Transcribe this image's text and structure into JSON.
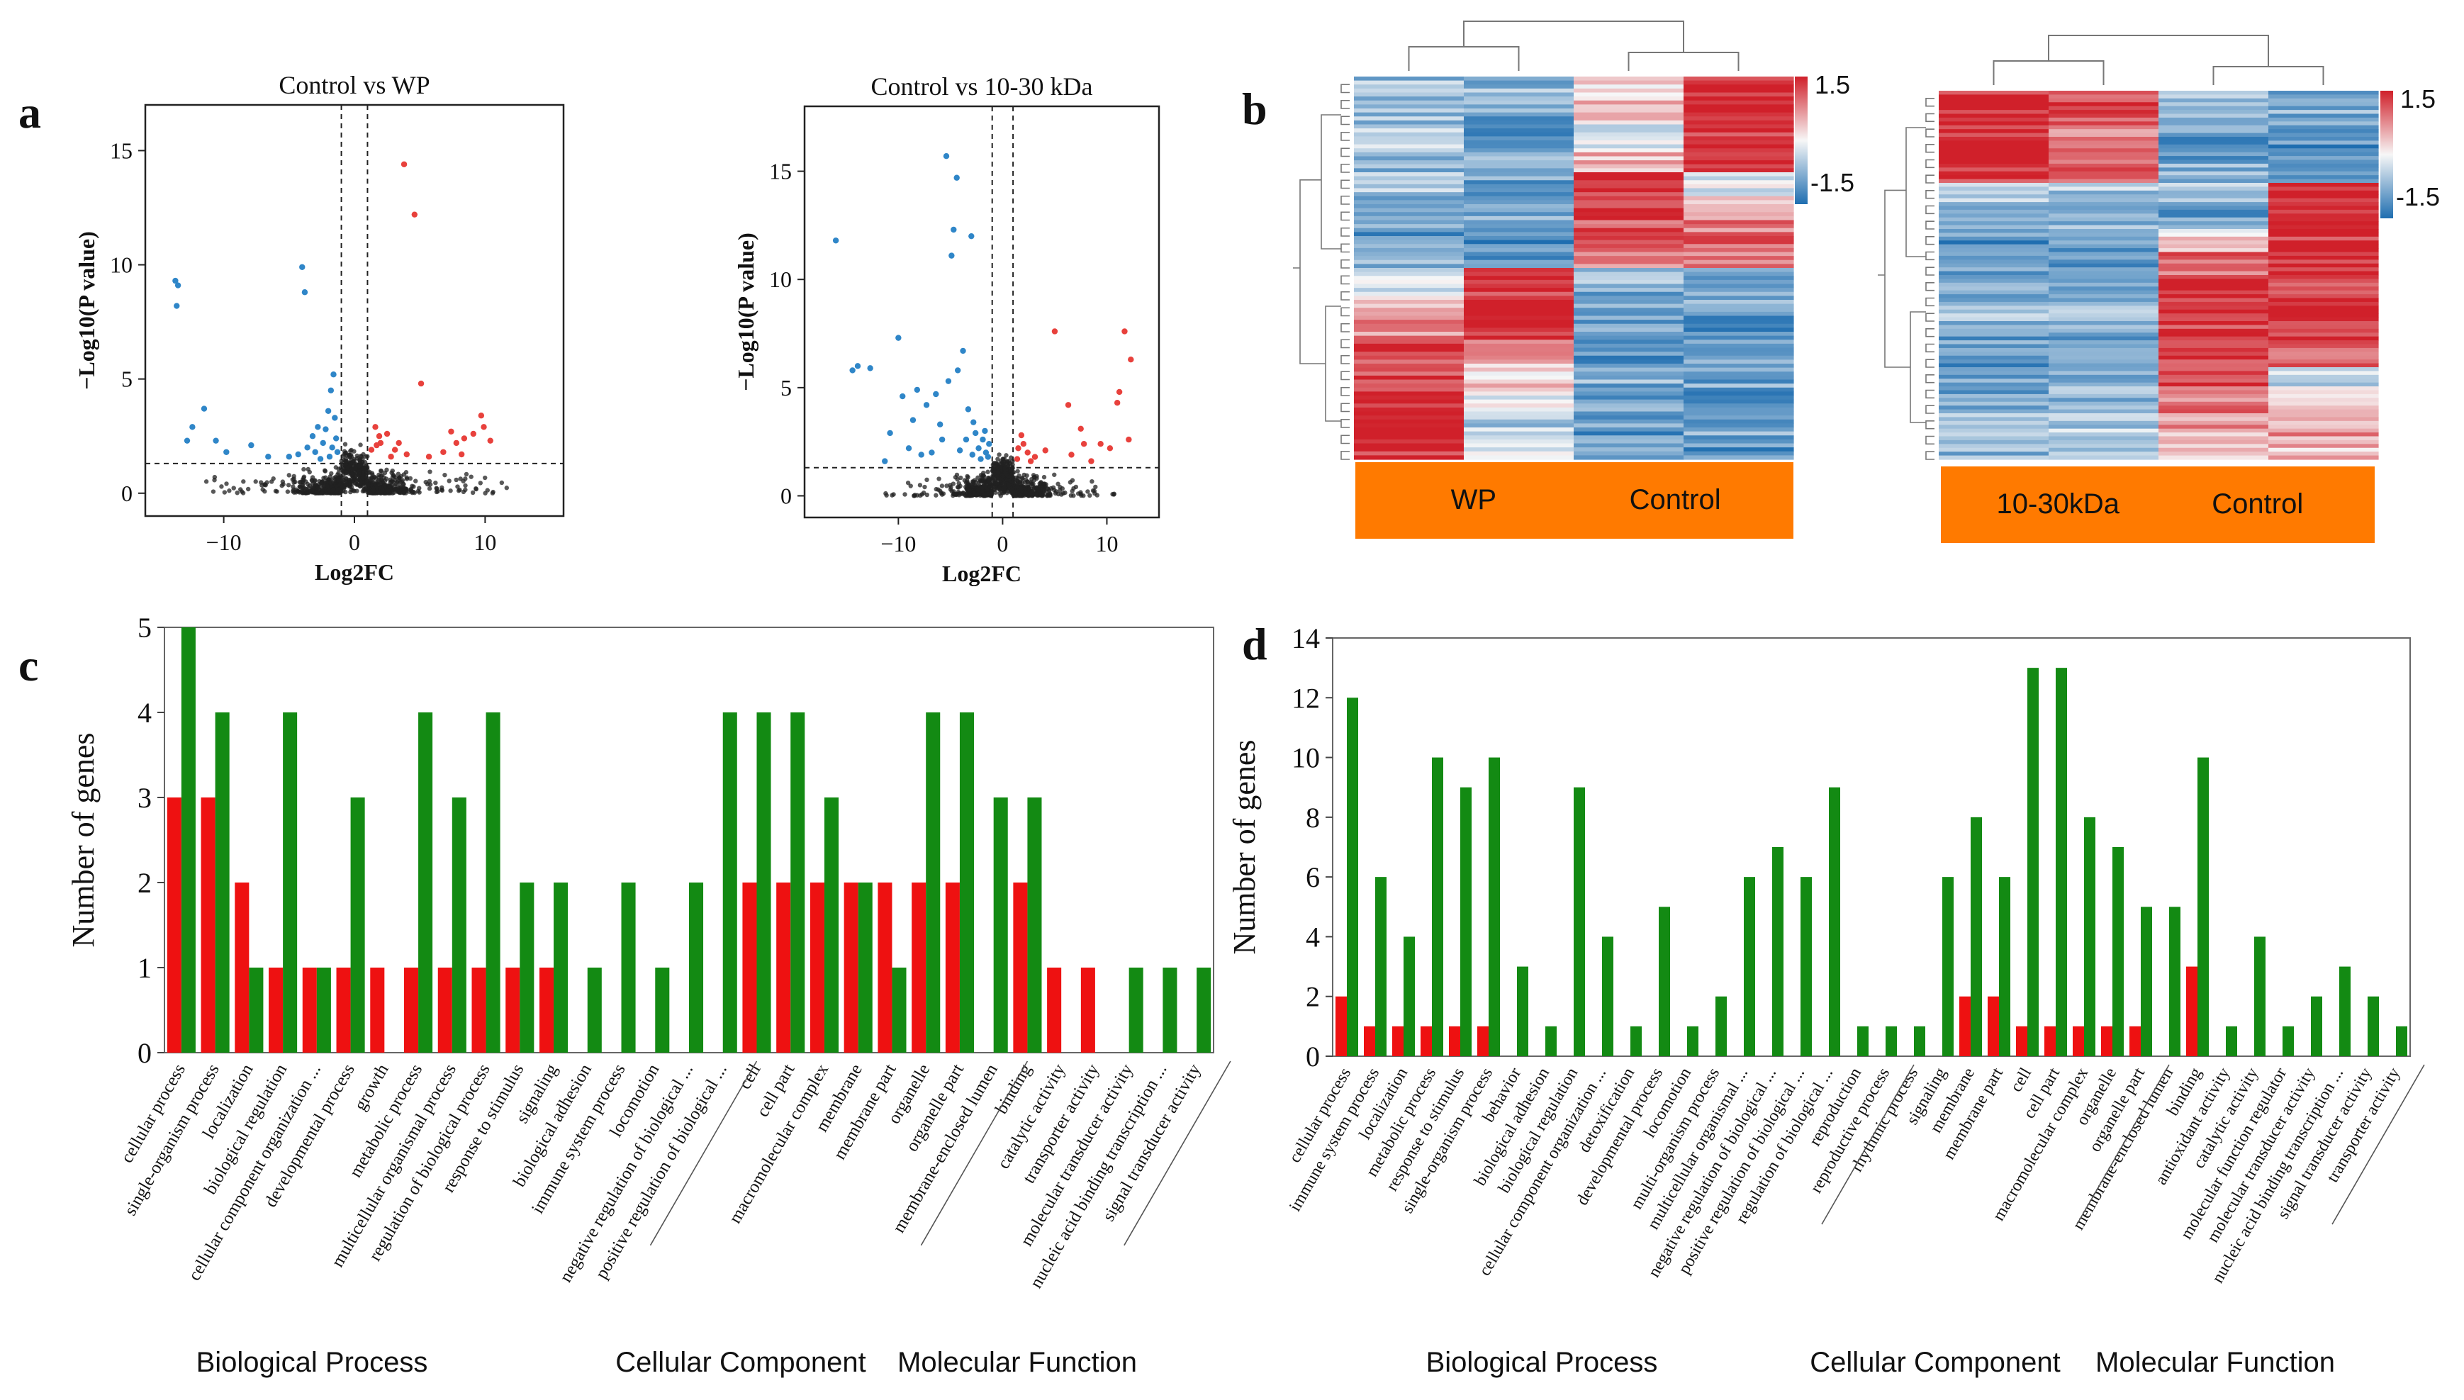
{
  "panel_labels": {
    "a": "a",
    "b": "b",
    "c": "c",
    "d": "d"
  },
  "colors": {
    "up": "#e8413c",
    "down": "#2f86c8",
    "ns": "#222222",
    "red_bar": "#ee1111",
    "green_bar": "#138a13",
    "orange": "#ff7a00",
    "heat_low": "#1f6eb0",
    "heat_mid": "#f7f7f7",
    "heat_high": "#d0202a"
  },
  "chart_data": [
    {
      "id": "volcano-1",
      "type": "scatter",
      "title": "Control vs WP",
      "xlabel": "Log2FC",
      "ylabel": "−Log10(P value)",
      "xlim": [
        -16,
        16
      ],
      "ylim": [
        -1,
        17
      ],
      "xticks": [
        -10,
        0,
        10
      ],
      "yticks": [
        0,
        5,
        10,
        15
      ],
      "thresholds": {
        "log2fc": [
          -1,
          1
        ],
        "neglog10p": 1.3
      },
      "series": [
        {
          "name": "down",
          "points": [
            [
              -13.7,
              9.3
            ],
            [
              -13.5,
              9.1
            ],
            [
              -13.6,
              8.2
            ],
            [
              -4.0,
              9.9
            ],
            [
              -3.8,
              8.8
            ],
            [
              -11.5,
              3.7
            ],
            [
              -12.4,
              2.9
            ],
            [
              -12.8,
              2.3
            ],
            [
              -10.6,
              2.3
            ],
            [
              -9.8,
              1.8
            ],
            [
              -7.9,
              2.1
            ],
            [
              -6.6,
              1.6
            ],
            [
              -5.0,
              1.6
            ],
            [
              -3.2,
              2.5
            ],
            [
              -3.0,
              1.8
            ],
            [
              -2.8,
              2.9
            ],
            [
              -2.4,
              2.2
            ],
            [
              -2.0,
              3.6
            ],
            [
              -1.8,
              4.5
            ],
            [
              -1.6,
              5.2
            ],
            [
              -1.5,
              3.3
            ],
            [
              -1.4,
              2.4
            ],
            [
              -1.3,
              1.8
            ],
            [
              -2.6,
              1.5
            ],
            [
              -1.9,
              1.6
            ],
            [
              -2.2,
              2.8
            ],
            [
              -1.7,
              2.0
            ],
            [
              -3.6,
              2.0
            ],
            [
              -4.3,
              1.7
            ]
          ]
        },
        {
          "name": "up",
          "points": [
            [
              3.8,
              14.4
            ],
            [
              4.6,
              12.2
            ],
            [
              5.1,
              4.8
            ],
            [
              1.6,
              2.9
            ],
            [
              2.0,
              2.2
            ],
            [
              2.5,
              2.6
            ],
            [
              3.1,
              1.9
            ],
            [
              3.4,
              2.2
            ],
            [
              4.0,
              1.7
            ],
            [
              1.3,
              1.9
            ],
            [
              1.7,
              2.1
            ],
            [
              2.8,
              1.6
            ],
            [
              1.9,
              2.5
            ],
            [
              7.4,
              2.7
            ],
            [
              7.8,
              2.2
            ],
            [
              8.4,
              2.4
            ],
            [
              9.1,
              2.6
            ],
            [
              9.7,
              3.4
            ],
            [
              9.9,
              2.9
            ],
            [
              10.4,
              2.3
            ],
            [
              8.2,
              1.7
            ],
            [
              6.8,
              1.8
            ],
            [
              5.7,
              1.6
            ]
          ]
        }
      ]
    },
    {
      "id": "volcano-2",
      "type": "scatter",
      "title": "Control vs 10-30 kDa",
      "xlabel": "Log2FC",
      "ylabel": "−Log10(P value)",
      "xlim": [
        -19,
        15
      ],
      "ylim": [
        -1,
        18
      ],
      "xticks": [
        -10,
        0,
        10
      ],
      "yticks": [
        0,
        5,
        10,
        15
      ],
      "thresholds": {
        "log2fc": [
          -1,
          1
        ],
        "neglog10p": 1.3
      },
      "series": [
        {
          "name": "down",
          "points": [
            [
              -5.4,
              15.7
            ],
            [
              -4.4,
              14.7
            ],
            [
              -4.7,
              12.3
            ],
            [
              -4.9,
              11.1
            ],
            [
              -3.0,
              12.0
            ],
            [
              -16.0,
              11.8
            ],
            [
              -12.7,
              5.9
            ],
            [
              -13.9,
              6.0
            ],
            [
              -14.4,
              5.8
            ],
            [
              -10.0,
              7.3
            ],
            [
              -9.6,
              4.6
            ],
            [
              -8.2,
              4.9
            ],
            [
              -7.3,
              4.2
            ],
            [
              -6.4,
              4.7
            ],
            [
              -5.2,
              5.3
            ],
            [
              -4.3,
              5.8
            ],
            [
              -3.8,
              6.7
            ],
            [
              -3.3,
              4.0
            ],
            [
              -2.8,
              3.4
            ],
            [
              -2.6,
              2.9
            ],
            [
              -2.3,
              2.2
            ],
            [
              -1.9,
              2.6
            ],
            [
              -1.7,
              3.0
            ],
            [
              -1.6,
              2.0
            ],
            [
              -1.4,
              1.8
            ],
            [
              -1.3,
              2.4
            ],
            [
              -2.1,
              1.7
            ],
            [
              -3.5,
              2.6
            ],
            [
              -4.1,
              2.1
            ],
            [
              -5.8,
              2.6
            ],
            [
              -6.8,
              2.0
            ],
            [
              -7.8,
              1.9
            ],
            [
              -9.0,
              2.2
            ],
            [
              -10.8,
              2.9
            ],
            [
              -11.3,
              1.6
            ],
            [
              -8.6,
              3.5
            ],
            [
              -6.0,
              3.3
            ],
            [
              -2.9,
              1.9
            ]
          ]
        },
        {
          "name": "up",
          "points": [
            [
              5.0,
              7.6
            ],
            [
              11.7,
              7.6
            ],
            [
              12.3,
              6.3
            ],
            [
              11.2,
              4.8
            ],
            [
              11.0,
              4.3
            ],
            [
              12.1,
              2.6
            ],
            [
              6.3,
              4.2
            ],
            [
              7.5,
              3.1
            ],
            [
              7.8,
              2.4
            ],
            [
              4.1,
              2.1
            ],
            [
              1.5,
              2.2
            ],
            [
              1.8,
              2.8
            ],
            [
              2.0,
              2.4
            ],
            [
              1.4,
              1.7
            ],
            [
              2.4,
              2.0
            ],
            [
              3.1,
              1.8
            ],
            [
              6.6,
              1.9
            ],
            [
              8.5,
              1.6
            ],
            [
              9.4,
              2.4
            ],
            [
              10.3,
              2.2
            ],
            [
              2.7,
              1.6
            ]
          ]
        }
      ]
    },
    {
      "id": "heatmap-1",
      "type": "heatmap",
      "columns": [
        "WP",
        "Control"
      ],
      "scale_labels": [
        "1.5",
        "-1.5"
      ],
      "column_profiles": [
        [
          -0.6,
          -0.7,
          -0.5,
          -0.8,
          -0.6,
          -0.9,
          -1.0,
          -0.7,
          -0.4,
          0.2,
          0.8,
          1.2,
          1.3,
          1.4,
          1.5,
          1.3
        ],
        [
          -0.7,
          -0.9,
          -1.0,
          -0.8,
          -0.9,
          -0.8,
          -1.1,
          -1.0,
          1.5,
          1.4,
          1.5,
          0.6,
          0.3,
          -0.1,
          -0.5,
          -0.2
        ],
        [
          0.1,
          0.3,
          -0.1,
          0.4,
          1.4,
          1.5,
          1.2,
          0.8,
          -0.7,
          -0.8,
          -0.9,
          -1.0,
          -0.8,
          -0.9,
          -1.0,
          -0.8
        ],
        [
          1.5,
          1.5,
          1.4,
          1.5,
          -0.2,
          0.5,
          0.9,
          1.0,
          -0.8,
          -0.9,
          -1.1,
          -0.7,
          -0.9,
          -1.0,
          -0.8,
          -1.1
        ]
      ]
    },
    {
      "id": "heatmap-2",
      "type": "heatmap",
      "columns": [
        "10-30kDa",
        "Control"
      ],
      "scale_labels": [
        "1.5",
        "-1.5"
      ],
      "column_profiles": [
        [
          1.5,
          1.4,
          1.5,
          1.3,
          -0.6,
          -0.8,
          -1.1,
          -0.9,
          -1.0,
          -0.7,
          -0.9,
          -1.1,
          -0.8,
          -0.9,
          -0.6,
          -0.8
        ],
        [
          1.3,
          0.9,
          1.2,
          1.0,
          -0.5,
          -0.7,
          -0.9,
          -1.0,
          -0.8,
          -0.6,
          -0.9,
          -1.0,
          -0.7,
          -0.8,
          -0.5,
          -0.6
        ],
        [
          -0.7,
          -0.9,
          -1.0,
          -0.8,
          -0.6,
          -0.9,
          0.3,
          0.9,
          1.4,
          1.5,
          1.3,
          1.4,
          1.2,
          0.9,
          0.6,
          0.4
        ],
        [
          -0.8,
          -1.0,
          -1.1,
          -0.9,
          1.5,
          1.5,
          1.4,
          1.5,
          1.3,
          1.5,
          1.4,
          1.2,
          -0.3,
          0.5,
          0.7,
          0.4
        ]
      ]
    },
    {
      "id": "go-bar-c",
      "type": "bar",
      "ylabel": "Number of genes",
      "ylim": [
        0,
        5
      ],
      "yticks": [
        0,
        1,
        2,
        3,
        4,
        5
      ],
      "groups": [
        {
          "name": "Biological Process",
          "start": 0,
          "end": 17
        },
        {
          "name": "Cellular Component",
          "start": 18,
          "end": 25
        },
        {
          "name": "Molecular Function",
          "start": 26,
          "end": 31
        }
      ],
      "categories": [
        "cellular process",
        "single-organism process",
        "localization",
        "biological regulation",
        "cellular component organization ...",
        "developmental process",
        "growth",
        "metabolic process",
        "multicellular organismal process",
        "regulation of biological process",
        "response to stimulus",
        "signaling",
        "biological adhesion",
        "immune system process",
        "locomotion",
        "negative regulation of biological ...",
        "positive regulation of biological ...",
        "cell",
        "cell part",
        "macromolecular complex",
        "membrane",
        "membrane part",
        "organelle",
        "organelle part",
        "membrane-enclosed lumen",
        "binding",
        "catalytic activity",
        "transporter activity",
        "molecular transducer activity",
        "nucleic acid binding transcription ...",
        "signal transducer activity"
      ],
      "series": [
        {
          "name": "red",
          "values": [
            3,
            3,
            2,
            1,
            1,
            1,
            1,
            1,
            1,
            1,
            1,
            1,
            0,
            0,
            0,
            0,
            0,
            2,
            2,
            2,
            2,
            2,
            2,
            2,
            0,
            2,
            1,
            1,
            0,
            0,
            0
          ]
        },
        {
          "name": "green",
          "values": [
            5,
            4,
            1,
            4,
            1,
            3,
            0,
            4,
            3,
            4,
            2,
            2,
            1,
            2,
            1,
            2,
            4,
            4,
            4,
            3,
            2,
            1,
            4,
            4,
            3,
            3,
            0,
            0,
            1,
            1,
            1
          ]
        }
      ]
    },
    {
      "id": "go-bar-d",
      "type": "bar",
      "ylabel": "Number of genes",
      "ylim": [
        0,
        14
      ],
      "yticks": [
        0,
        2,
        4,
        6,
        8,
        10,
        12,
        14
      ],
      "groups": [
        {
          "name": "Biological Process",
          "start": 0,
          "end": 20
        },
        {
          "name": "Cellular Component",
          "start": 21,
          "end": 29
        },
        {
          "name": "Molecular Function",
          "start": 30,
          "end": 38
        }
      ],
      "categories": [
        "cellular process",
        "immune system process",
        "localization",
        "metabolic process",
        "response to stimulus",
        "single-organism process",
        "behavior",
        "biological adhesion",
        "biological regulation",
        "cellular component organization ...",
        "detoxification",
        "developmental process",
        "locomotion",
        "multi-organism process",
        "multicellular organismal ...",
        "negative regulation of biological ...",
        "positive regulation of biological ...",
        "regulation of biological ...",
        "reproduction",
        "reproductive process",
        "rhythmic process",
        "signaling",
        "membrane",
        "membrane part",
        "cell",
        "cell part",
        "macromolecular complex",
        "organelle",
        "organelle part",
        "membrane-enclosed lumen",
        "binding",
        "antioxidant activity",
        "catalytic activity",
        "molecular function regulator",
        "molecular transducer activity",
        "nucleic acid binding transcription ...",
        "signal transducer activity",
        "transporter activity"
      ],
      "series": [
        {
          "name": "red",
          "values": [
            2,
            1,
            1,
            1,
            1,
            1,
            0,
            0,
            0,
            0,
            0,
            0,
            0,
            0,
            0,
            0,
            0,
            0,
            0,
            0,
            0,
            0,
            2,
            2,
            1,
            1,
            1,
            1,
            1,
            0,
            3,
            0,
            0,
            0,
            0,
            0,
            0,
            0
          ]
        },
        {
          "name": "green",
          "values": [
            12,
            6,
            4,
            10,
            9,
            10,
            3,
            1,
            9,
            4,
            1,
            5,
            1,
            2,
            6,
            7,
            6,
            9,
            1,
            1,
            1,
            6,
            8,
            6,
            13,
            13,
            8,
            7,
            5,
            5,
            10,
            1,
            4,
            1,
            2,
            3,
            2,
            1
          ]
        }
      ]
    }
  ]
}
